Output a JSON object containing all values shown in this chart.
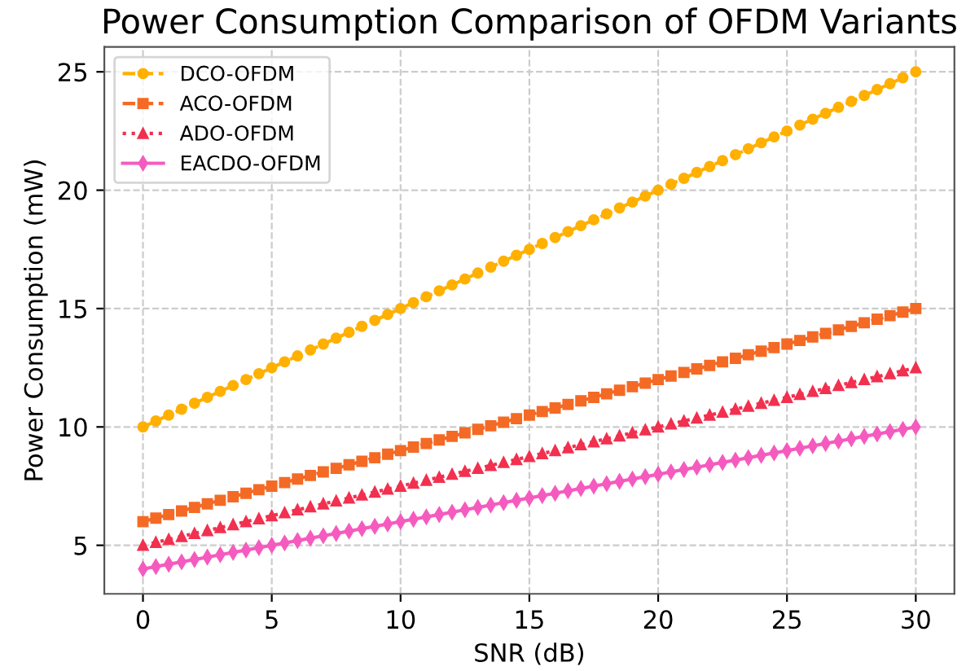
{
  "chart_data": {
    "type": "line",
    "title": "Power Consumption Comparison of OFDM Variants",
    "xlabel": "SNR (dB)",
    "ylabel": "Power Consumption (mW)",
    "x": [
      0,
      0.5,
      1,
      1.5,
      2,
      2.5,
      3,
      3.5,
      4,
      4.5,
      5,
      5.5,
      6,
      6.5,
      7,
      7.5,
      8,
      8.5,
      9,
      9.5,
      10,
      10.5,
      11,
      11.5,
      12,
      12.5,
      13,
      13.5,
      14,
      14.5,
      15,
      15.5,
      16,
      16.5,
      17,
      17.5,
      18,
      18.5,
      19,
      19.5,
      20,
      20.5,
      21,
      21.5,
      22,
      22.5,
      23,
      23.5,
      24,
      24.5,
      25,
      25.5,
      26,
      26.5,
      27,
      27.5,
      28,
      28.5,
      29,
      29.5,
      30
    ],
    "series": [
      {
        "name": "DCO-OFDM",
        "color": "#ffb000",
        "marker": "circle",
        "line_style": "dashed",
        "values": [
          10,
          10.25,
          10.5,
          10.75,
          11,
          11.25,
          11.5,
          11.75,
          12,
          12.25,
          12.5,
          12.75,
          13,
          13.25,
          13.5,
          13.75,
          14,
          14.25,
          14.5,
          14.75,
          15,
          15.25,
          15.5,
          15.75,
          16,
          16.25,
          16.5,
          16.75,
          17,
          17.25,
          17.5,
          17.75,
          18,
          18.25,
          18.5,
          18.75,
          19,
          19.25,
          19.5,
          19.75,
          20,
          20.25,
          20.5,
          20.75,
          21,
          21.25,
          21.5,
          21.75,
          22,
          22.25,
          22.5,
          22.75,
          23,
          23.25,
          23.5,
          23.75,
          24,
          24.25,
          24.5,
          24.75,
          25
        ]
      },
      {
        "name": "ACO-OFDM",
        "color": "#f46a25",
        "marker": "square",
        "line_style": "dashed",
        "values": [
          6,
          6.15,
          6.3,
          6.45,
          6.6,
          6.75,
          6.9,
          7.05,
          7.2,
          7.35,
          7.5,
          7.65,
          7.8,
          7.95,
          8.1,
          8.25,
          8.4,
          8.55,
          8.7,
          8.85,
          9,
          9.15,
          9.3,
          9.45,
          9.6,
          9.75,
          9.9,
          10.05,
          10.2,
          10.35,
          10.5,
          10.65,
          10.8,
          10.95,
          11.1,
          11.25,
          11.4,
          11.55,
          11.7,
          11.85,
          12,
          12.15,
          12.3,
          12.45,
          12.6,
          12.75,
          12.9,
          13.05,
          13.2,
          13.35,
          13.5,
          13.65,
          13.8,
          13.95,
          14.1,
          14.25,
          14.4,
          14.55,
          14.7,
          14.85,
          15
        ]
      },
      {
        "name": "ADO-OFDM",
        "color": "#f2304f",
        "marker": "triangle",
        "line_style": "dotted",
        "values": [
          5,
          5.125,
          5.25,
          5.375,
          5.5,
          5.625,
          5.75,
          5.875,
          6,
          6.125,
          6.25,
          6.375,
          6.5,
          6.625,
          6.75,
          6.875,
          7,
          7.125,
          7.25,
          7.375,
          7.5,
          7.625,
          7.75,
          7.875,
          8,
          8.125,
          8.25,
          8.375,
          8.5,
          8.625,
          8.75,
          8.875,
          9,
          9.125,
          9.25,
          9.375,
          9.5,
          9.625,
          9.75,
          9.875,
          10,
          10.125,
          10.25,
          10.375,
          10.5,
          10.625,
          10.75,
          10.875,
          11,
          11.125,
          11.25,
          11.375,
          11.5,
          11.625,
          11.75,
          11.875,
          12,
          12.125,
          12.25,
          12.375,
          12.5
        ]
      },
      {
        "name": "EACDO-OFDM",
        "color": "#f55bbf",
        "marker": "diamond",
        "line_style": "solid",
        "values": [
          4,
          4.1,
          4.2,
          4.3,
          4.4,
          4.5,
          4.6,
          4.7,
          4.8,
          4.9,
          5,
          5.1,
          5.2,
          5.3,
          5.4,
          5.5,
          5.6,
          5.7,
          5.8,
          5.9,
          6,
          6.1,
          6.2,
          6.3,
          6.4,
          6.5,
          6.6,
          6.7,
          6.8,
          6.9,
          7,
          7.1,
          7.2,
          7.3,
          7.4,
          7.5,
          7.6,
          7.7,
          7.8,
          7.9,
          8,
          8.1,
          8.2,
          8.3,
          8.4,
          8.5,
          8.6,
          8.7,
          8.8,
          8.9,
          9,
          9.1,
          9.2,
          9.3,
          9.4,
          9.5,
          9.6,
          9.7,
          9.8,
          9.9,
          10
        ]
      }
    ],
    "xlim": [
      -1.5,
      31.5
    ],
    "xticks": [
      0,
      5,
      10,
      15,
      20,
      25,
      30
    ],
    "ylim": [
      2.95,
      26.05
    ],
    "yticks": [
      5,
      10,
      15,
      20,
      25
    ],
    "grid": true,
    "legend": "top left"
  }
}
